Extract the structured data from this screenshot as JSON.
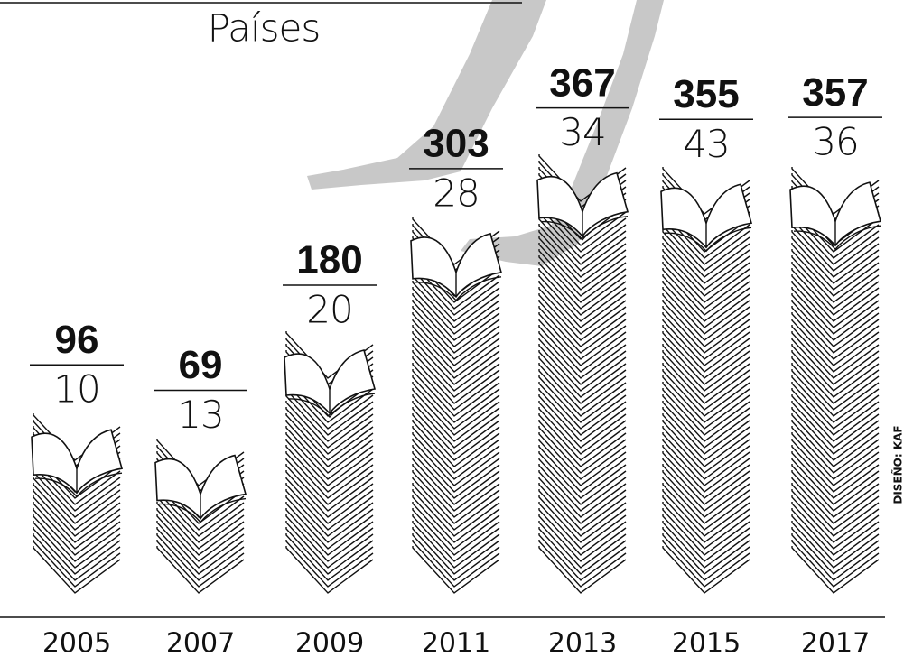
{
  "chart_data": {
    "type": "bar",
    "title": "Países",
    "categories": [
      "2005",
      "2007",
      "2009",
      "2011",
      "2013",
      "2015",
      "2017"
    ],
    "values": [
      96,
      69,
      180,
      303,
      367,
      355,
      357
    ],
    "country_values": [
      10,
      13,
      20,
      28,
      34,
      43,
      36
    ],
    "color": "#111111",
    "credit": "DISEÑO: KAF"
  }
}
